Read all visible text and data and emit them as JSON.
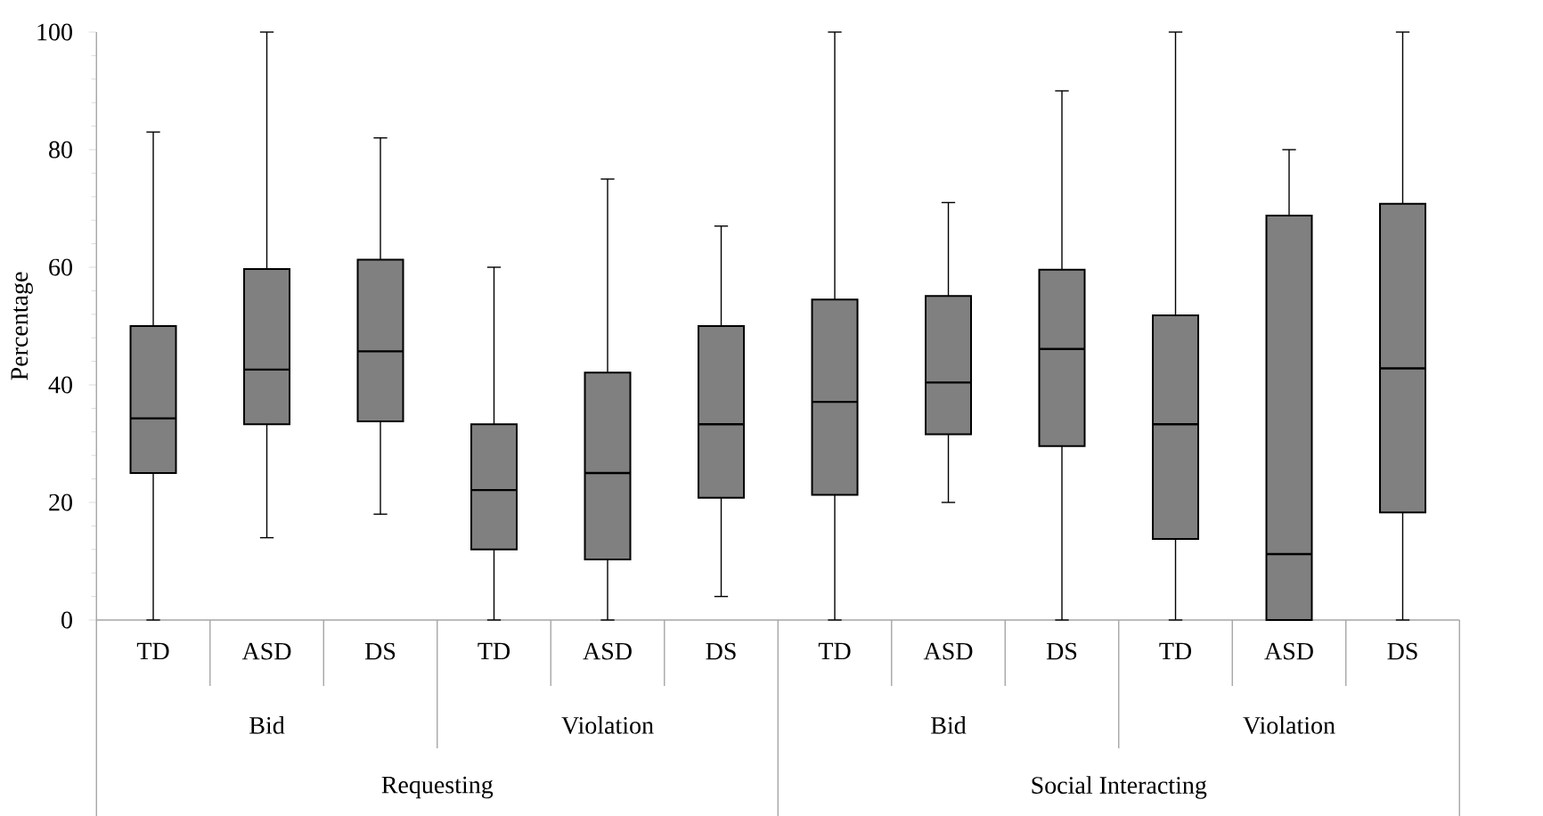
{
  "chart_data": {
    "type": "box",
    "ylabel": "Percentage",
    "categories": [
      "TD",
      "ASD",
      "DS",
      "TD",
      "ASD",
      "DS",
      "TD",
      "ASD",
      "DS",
      "TD",
      "ASD",
      "DS"
    ],
    "boxes": [
      {
        "low": 0,
        "q1": 25,
        "median": 34.3,
        "q3": 50,
        "high": 83
      },
      {
        "low": 14,
        "q1": 33.3,
        "median": 42.6,
        "q3": 59.7,
        "high": 100
      },
      {
        "low": 18,
        "q1": 33.8,
        "median": 45.7,
        "q3": 61.3,
        "high": 82
      },
      {
        "low": 0,
        "q1": 12,
        "median": 22.1,
        "q3": 33.3,
        "high": 60
      },
      {
        "low": 0,
        "q1": 10.3,
        "median": 25,
        "q3": 42.1,
        "high": 75
      },
      {
        "low": 4,
        "q1": 20.8,
        "median": 33.3,
        "q3": 50,
        "high": 67
      },
      {
        "low": 0,
        "q1": 21.3,
        "median": 37.1,
        "q3": 54.5,
        "high": 100
      },
      {
        "low": 20,
        "q1": 31.6,
        "median": 40.4,
        "q3": 55.1,
        "high": 71
      },
      {
        "low": 0,
        "q1": 29.6,
        "median": 46.1,
        "q3": 59.6,
        "high": 90
      },
      {
        "low": 0,
        "q1": 13.8,
        "median": 33.3,
        "q3": 51.8,
        "high": 100
      },
      {
        "low": 0,
        "q1": 0,
        "median": 11.2,
        "q3": 68.8,
        "high": 80
      },
      {
        "low": 0,
        "q1": 18.3,
        "median": 42.8,
        "q3": 70.8,
        "high": 100
      }
    ],
    "color": "#808080",
    "ylim": [
      0,
      100
    ],
    "yticks": [
      0,
      20,
      40,
      60,
      80,
      100
    ],
    "annotations": [
      "Bid",
      "Violation",
      "Bid",
      "Violation",
      "Requesting",
      "Social Interacting"
    ]
  }
}
